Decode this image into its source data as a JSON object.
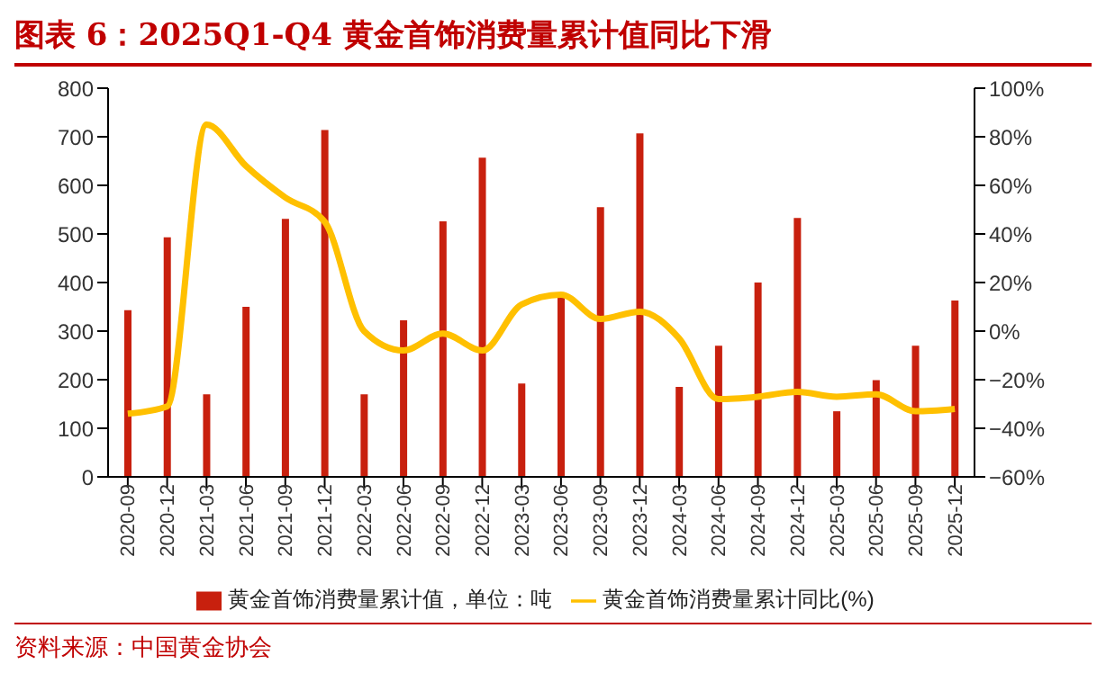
{
  "chart_data": {
    "type": "bar",
    "title": "图表 6：2025Q1-Q4 黄金首饰消费量累计值同比下滑",
    "categories": [
      "2020-09",
      "2020-12",
      "2021-03",
      "2021-06",
      "2021-09",
      "2021-12",
      "2022-03",
      "2022-06",
      "2022-09",
      "2022-12",
      "2023-03",
      "2023-06",
      "2023-09",
      "2023-12",
      "2024-03",
      "2024-06",
      "2024-09",
      "2024-12",
      "2025-03",
      "2025-06",
      "2025-09",
      "2025-12"
    ],
    "series": [
      {
        "name": "黄金首饰消费量累计值，单位：吨",
        "color": "#c8200e",
        "values": [
          343,
          493,
          170,
          350,
          531,
          714,
          170,
          322,
          526,
          657,
          192,
          370,
          555,
          707,
          185,
          270,
          400,
          533,
          135,
          199,
          270,
          363
        ]
      },
      {
        "name": "黄金首饰消费量累计同比(%)",
        "type": "line",
        "axis": "y2",
        "color": "#ffc000",
        "values": [
          -34,
          -31,
          85,
          68,
          55,
          45,
          0,
          -8,
          -1,
          -8,
          11,
          15,
          5,
          8,
          -3,
          -28,
          -27,
          -25,
          -27,
          -26,
          -33,
          -32
        ]
      }
    ],
    "ylim": [
      0,
      800
    ],
    "yticks": [
      0,
      100,
      200,
      300,
      400,
      500,
      600,
      700,
      800
    ],
    "y2lim": [
      -60,
      100
    ],
    "y2ticks": [
      {
        "value": -60,
        "label": "−60%"
      },
      {
        "value": -40,
        "label": "−40%"
      },
      {
        "value": -20,
        "label": "−20%"
      },
      {
        "value": 0,
        "label": "0%"
      },
      {
        "value": 20,
        "label": "20%"
      },
      {
        "value": 40,
        "label": "40%"
      },
      {
        "value": 60,
        "label": "60%"
      },
      {
        "value": 80,
        "label": "80%"
      },
      {
        "value": 100,
        "label": "100%"
      }
    ],
    "grid": false,
    "legend": "bottom",
    "marker": "none",
    "line_style": "solid",
    "annotations": [
      "资料来源：中国黄金协会"
    ]
  }
}
